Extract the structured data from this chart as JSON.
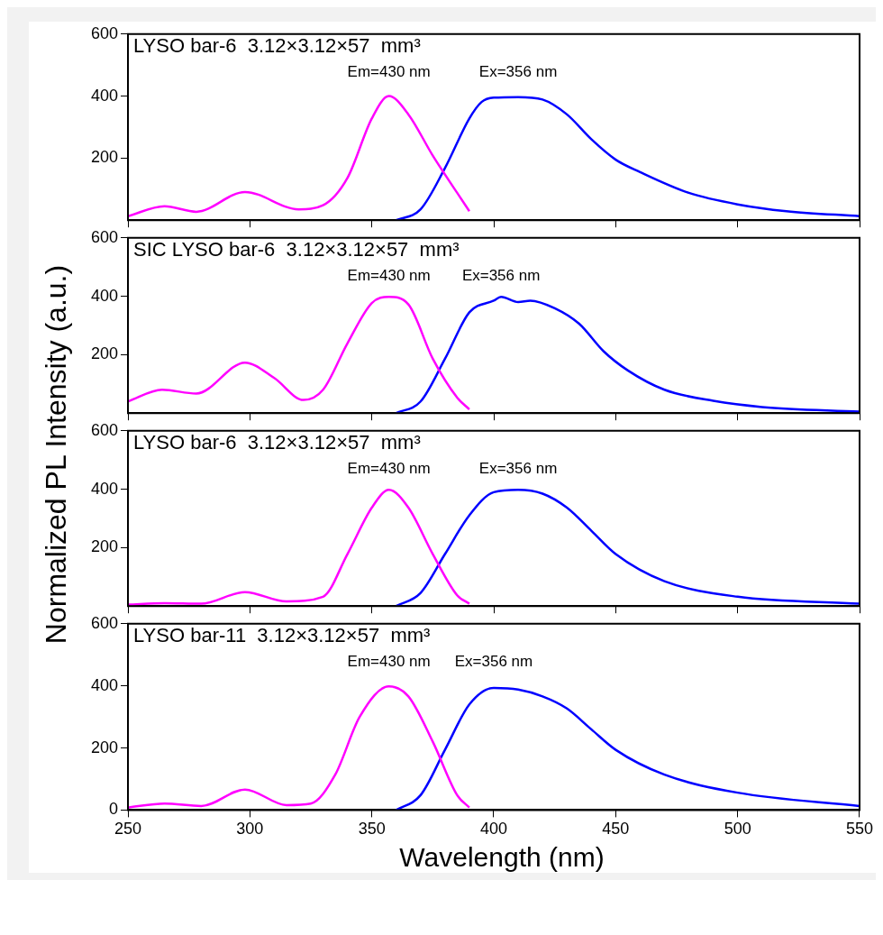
{
  "chart_data": [
    {
      "type": "line",
      "title": "LYSO bar-6  3.12×3.12×57  mm³",
      "ylabel": "Normalized PL Intensity (a.u.)",
      "xlim": [
        250,
        550
      ],
      "xticks": [
        250,
        300,
        350,
        400,
        450,
        500,
        550
      ],
      "ylim": [
        0,
        600
      ],
      "yticks": [
        200,
        400,
        600
      ],
      "tick_labels": "y",
      "series": [
        {
          "name": "Em=430 nm",
          "color": "#ff00ff",
          "x": [
            250,
            265,
            278,
            298,
            320,
            330,
            340,
            350,
            357,
            365,
            375,
            385,
            390
          ],
          "values": [
            13,
            45,
            27,
            91,
            35,
            48,
            136,
            328,
            400,
            341,
            208,
            88,
            29
          ]
        },
        {
          "name": "Ex=356 nm",
          "color": "#0000ff",
          "x": [
            360,
            370,
            380,
            390,
            395,
            400,
            410,
            420,
            430,
            440,
            450,
            460,
            480,
            500,
            520,
            550
          ],
          "values": [
            0,
            35,
            168,
            328,
            381,
            395,
            397,
            389,
            341,
            261,
            195,
            155,
            88,
            51,
            29,
            13
          ]
        }
      ]
    },
    {
      "type": "line",
      "title": "SIC LYSO bar-6  3.12×3.12×57  mm³",
      "xlim": [
        250,
        550
      ],
      "xticks": [
        250,
        300,
        350,
        400,
        450,
        500,
        550
      ],
      "ylim": [
        0,
        600
      ],
      "yticks": [
        200,
        400,
        600
      ],
      "tick_labels": "y",
      "series": [
        {
          "name": "Em=430 nm",
          "color": "#ff00ff",
          "x": [
            250,
            264,
            278,
            298,
            310,
            322,
            330,
            340,
            350,
            357,
            365,
            375,
            385,
            390
          ],
          "values": [
            40,
            80,
            67,
            173,
            120,
            45,
            80,
            239,
            377,
            398,
            372,
            186,
            53,
            13
          ]
        },
        {
          "name": "Ex=356 nm",
          "color": "#0000ff",
          "x": [
            360,
            370,
            380,
            390,
            400,
            403,
            410,
            415,
            425,
            435,
            445,
            455,
            470,
            490,
            510,
            550
          ],
          "values": [
            0,
            40,
            186,
            345,
            385,
            398,
            380,
            385,
            359,
            306,
            212,
            146,
            80,
            42,
            21,
            5
          ]
        }
      ]
    },
    {
      "type": "line",
      "title": "LYSO bar-6  3.12×3.12×57  mm³",
      "xlim": [
        250,
        550
      ],
      "xticks": [
        250,
        300,
        350,
        400,
        450,
        500,
        550
      ],
      "ylim": [
        0,
        600
      ],
      "yticks": [
        200,
        400,
        600
      ],
      "tick_labels": "y",
      "series": [
        {
          "name": "Em=430 nm",
          "color": "#ff00ff",
          "x": [
            250,
            265,
            280,
            298,
            315,
            330,
            340,
            350,
            357,
            365,
            375,
            385,
            390
          ],
          "values": [
            5,
            10,
            8,
            48,
            16,
            32,
            178,
            337,
            398,
            337,
            178,
            37,
            8
          ]
        },
        {
          "name": "Ex=356 nm",
          "color": "#0000ff",
          "x": [
            360,
            370,
            380,
            390,
            400,
            410,
            420,
            430,
            440,
            450,
            470,
            500,
            550
          ],
          "values": [
            0,
            45,
            178,
            311,
            390,
            398,
            385,
            337,
            258,
            178,
            85,
            32,
            8
          ]
        }
      ]
    },
    {
      "type": "line",
      "title": "LYSO bar-11  3.12×3.12×57  mm³",
      "xlabel": "Wavelength (nm)",
      "xlim": [
        250,
        550
      ],
      "xticks": [
        250,
        300,
        350,
        400,
        450,
        500,
        550
      ],
      "ylim": [
        0,
        600
      ],
      "yticks": [
        0,
        200,
        400,
        600
      ],
      "series": [
        {
          "name": "Em=430 nm",
          "color": "#ff00ff",
          "x": [
            250,
            265,
            280,
            298,
            315,
            325,
            335,
            345,
            357,
            365,
            375,
            385,
            390
          ],
          "values": [
            8,
            21,
            13,
            66,
            16,
            21,
            114,
            300,
            398,
            366,
            220,
            48,
            8
          ]
        },
        {
          "name": "Ex=356 nm",
          "color": "#0000ff",
          "x": [
            360,
            370,
            380,
            390,
            400,
            410,
            420,
            430,
            440,
            450,
            470,
            500,
            550
          ],
          "values": [
            0,
            48,
            194,
            340,
            393,
            388,
            366,
            327,
            260,
            194,
            114,
            56,
            13
          ]
        }
      ]
    }
  ]
}
